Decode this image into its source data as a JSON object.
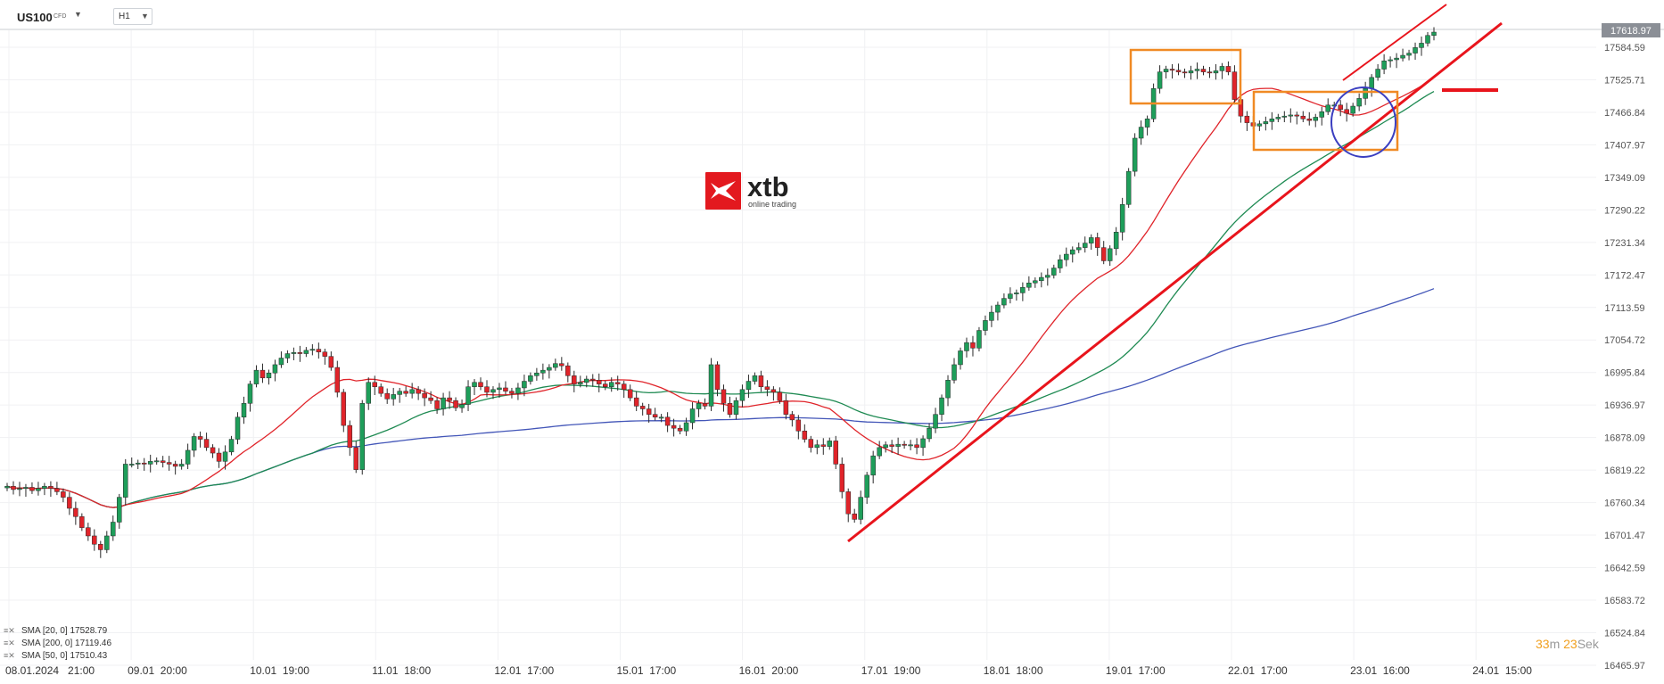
{
  "header": {
    "symbol": "US100",
    "symbol_tag": "CFD",
    "timeframe": "H1"
  },
  "logo": {
    "brand": "xtb",
    "tagline": "online trading"
  },
  "legend": [
    {
      "text": "SMA [20, 0] 17528.79",
      "color": "#e0242a"
    },
    {
      "text": "SMA [200, 0] 17119.46",
      "color": "#4356b8"
    },
    {
      "text": "SMA [50, 0] 17510.43",
      "color": "#1e8a52"
    }
  ],
  "timer": {
    "minutes": "33",
    "m_label": "m",
    "seconds": "23",
    "s_label": "Sek"
  },
  "colors": {
    "up": "#1e9e5a",
    "down": "#e0242a",
    "sma20": "#e0242a",
    "sma50": "#1e8a52",
    "sma200": "#4356b8",
    "annotation_box": "#f08a24",
    "annotation_circle": "#3a3ec0",
    "trendline": "#e8141c"
  },
  "chart_data": {
    "type": "candlestick",
    "current_price_label": "17618.97",
    "y_tick_labels": [
      "17584.59",
      "17525.71",
      "17466.84",
      "17407.97",
      "17349.09",
      "17290.22",
      "17231.34",
      "17172.47",
      "17113.59",
      "17054.72",
      "16995.84",
      "16936.97",
      "16878.09",
      "16819.22",
      "16760.34",
      "16701.47",
      "16642.59",
      "16583.72",
      "16524.84",
      "16465.97"
    ],
    "x_tick_labels": [
      "08.01.2024   21:00",
      "09.01  20:00",
      "10.01  19:00",
      "11.01  18:00",
      "12.01  17:00",
      "15.01  17:00",
      "16.01  20:00",
      "17.01  19:00",
      "18.01  18:00",
      "19.01  17:00",
      "22.01  17:00",
      "23.01  16:00",
      "24.01  15:00"
    ],
    "ylim": [
      16465.97,
      17618.97
    ],
    "close": [
      16790,
      16784,
      16786,
      16788,
      16782,
      16786,
      16790,
      16786,
      16780,
      16770,
      16750,
      16735,
      16715,
      16700,
      16685,
      16675,
      16700,
      16725,
      16770,
      16830,
      16830,
      16832,
      16830,
      16835,
      16836,
      16833,
      16830,
      16826,
      16830,
      16855,
      16880,
      16875,
      16860,
      16850,
      16835,
      16852,
      16875,
      16915,
      16940,
      16975,
      17000,
      16986,
      16995,
      17010,
      17022,
      17030,
      17032,
      17030,
      17036,
      17038,
      17033,
      17025,
      17005,
      16960,
      16900,
      16860,
      16820,
      16940,
      16978,
      16970,
      16958,
      16948,
      16956,
      16962,
      16958,
      16965,
      16958,
      16950,
      16945,
      16930,
      16950,
      16945,
      16932,
      16938,
      16970,
      16978,
      16970,
      16960,
      16965,
      16968,
      16962,
      16958,
      16968,
      16980,
      16990,
      16995,
      17000,
      17005,
      17012,
      17008,
      16990,
      16975,
      16978,
      16984,
      16982,
      16975,
      16970,
      16978,
      16975,
      16965,
      16950,
      16935,
      16930,
      16920,
      16915,
      16915,
      16900,
      16895,
      16890,
      16905,
      16930,
      16940,
      16935,
      17010,
      16965,
      16940,
      16920,
      16945,
      16965,
      16980,
      16990,
      16970,
      16965,
      16960,
      16945,
      16920,
      16910,
      16890,
      16875,
      16860,
      16865,
      16862,
      16872,
      16830,
      16780,
      16740,
      16730,
      16770,
      16810,
      16845,
      16860,
      16865,
      16862,
      16866,
      16864,
      16865,
      16860,
      16876,
      16895,
      16920,
      16950,
      16982,
      17010,
      17035,
      17050,
      17040,
      17072,
      17090,
      17105,
      17118,
      17130,
      17138,
      17140,
      17150,
      17158,
      17162,
      17168,
      17172,
      17185,
      17200,
      17210,
      17218,
      17222,
      17230,
      17240,
      17222,
      17198,
      17220,
      17250,
      17300,
      17360,
      17420,
      17440,
      17455,
      17510,
      17540,
      17545,
      17543,
      17540,
      17538,
      17542,
      17545,
      17540,
      17538,
      17542,
      17550,
      17540,
      17490,
      17460,
      17448,
      17442,
      17446,
      17450,
      17455,
      17458,
      17460,
      17462,
      17460,
      17455,
      17452,
      17458,
      17468,
      17480,
      17480,
      17472,
      17465,
      17478,
      17492,
      17510,
      17530,
      17545,
      17560,
      17562,
      17565,
      17570,
      17574,
      17584,
      17592,
      17606,
      17612
    ]
  }
}
